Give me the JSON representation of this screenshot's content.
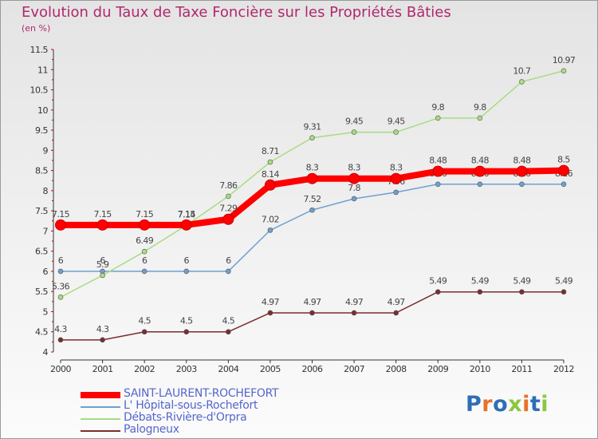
{
  "header": {
    "title": "Evolution du Taux de Taxe Foncière sur les Propriétés Bâties",
    "unit": "(en %)"
  },
  "logo": {
    "text": "Proxiti",
    "letter_colors": [
      "#2d6fb6",
      "#e8702a",
      "#2d6fb6",
      "#8cc63f",
      "#e8702a",
      "#2d6fb6",
      "#8cc63f"
    ]
  },
  "chart_data": {
    "type": "line",
    "title": "Evolution du Taux de Taxe Foncière sur les Propriétés Bâties",
    "ylabel": "(en %)",
    "xlabel": "",
    "ylim": [
      4,
      11.5
    ],
    "y_ticks": [
      "4",
      "4.5",
      "5",
      "5.5",
      "6",
      "6.5",
      "7",
      "7.5",
      "8",
      "8.5",
      "9",
      "9.5",
      "10",
      "10.5",
      "11",
      "11.5"
    ],
    "grid": false,
    "legend_position": "bottom-left",
    "x": [
      "2000",
      "2001",
      "2002",
      "2003",
      "2004",
      "2005",
      "2006",
      "2007",
      "2008",
      "2009",
      "2010",
      "2011",
      "2012"
    ],
    "series": [
      {
        "name": "SAINT-LAURENT-ROCHEFORT",
        "color": "#ff0000",
        "values": [
          7.15,
          7.15,
          7.15,
          7.15,
          7.29,
          8.14,
          8.3,
          8.3,
          8.3,
          8.48,
          8.48,
          8.48,
          8.5
        ],
        "labels": [
          "7.15",
          "7.15",
          "7.15",
          "7.15",
          "7.29",
          "8.14",
          "8.3",
          "8.3",
          "8.3",
          "8.48",
          "8.48",
          "8.48",
          "8.5"
        ]
      },
      {
        "name": "L' Hôpital-sous-Rochefort",
        "color": "#6f9fd0",
        "values": [
          6,
          6,
          6,
          6,
          6,
          7.02,
          7.52,
          7.8,
          7.96,
          8.16,
          8.16,
          8.16,
          8.16
        ],
        "labels": [
          "6",
          "6",
          "6",
          "6",
          "6",
          "7.02",
          "7.52",
          "7.8",
          "7.96",
          "8.16",
          "8.16",
          "8.16",
          "8.16"
        ]
      },
      {
        "name": "Débats-Rivière-d'Orpra",
        "color": "#a8dc82",
        "values": [
          5.36,
          5.9,
          6.49,
          7.14,
          7.86,
          8.71,
          9.31,
          9.45,
          9.45,
          9.8,
          9.8,
          10.7,
          10.97
        ],
        "labels": [
          "5.36",
          "5.9",
          "6.49",
          "7.14",
          "7.86",
          "8.71",
          "9.31",
          "9.45",
          "9.45",
          "9.8",
          "9.8",
          "10.7",
          "10.97"
        ]
      },
      {
        "name": "Palogneux",
        "color": "#7b2d2d",
        "values": [
          4.3,
          4.3,
          4.5,
          4.5,
          4.5,
          4.97,
          4.97,
          4.97,
          4.97,
          5.49,
          5.49,
          5.49,
          5.49
        ],
        "labels": [
          "4.3",
          "4.3",
          "4.5",
          "4.5",
          "4.5",
          "4.97",
          "4.97",
          "4.97",
          "4.97",
          "5.49",
          "5.49",
          "5.49",
          "5.49"
        ]
      }
    ]
  }
}
